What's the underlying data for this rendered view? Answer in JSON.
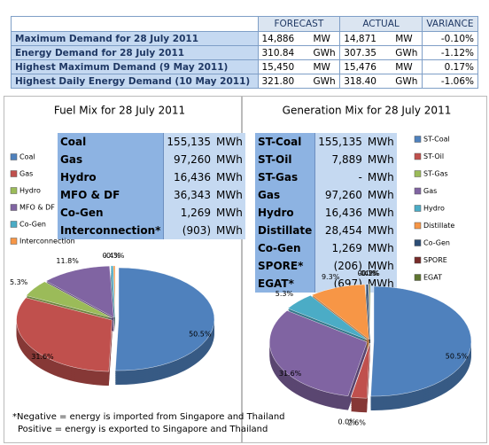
{
  "summary_table": {
    "headers": [
      "FORECAST",
      "ACTUAL",
      "VARIANCE"
    ],
    "rows": [
      [
        "Maximum Demand for 28 July 2011",
        "14,886",
        "MW",
        "14,871",
        "MW",
        "-0.10%"
      ],
      [
        "Energy Demand for 28 July 2011",
        "310.84",
        "GWh",
        "307.35",
        "GWh",
        "-1.12%"
      ],
      [
        "Highest Maximum Demand (9 May 2011)",
        "15,450",
        "MW",
        "15,476",
        "MW",
        "0.17%"
      ],
      [
        "Highest Daily Energy Demand (10 May 2011)",
        "321.80",
        "GWh",
        "318.40",
        "GWh",
        "-1.06%"
      ]
    ]
  },
  "fuel_table": {
    "rows": [
      [
        "Coal",
        "155,135",
        "MWh"
      ],
      [
        "Gas",
        "97,260",
        "MWh"
      ],
      [
        "Hydro",
        "16,436",
        "MWh"
      ],
      [
        "MFO & DF",
        "36,343",
        "MWh"
      ],
      [
        "Co-Gen",
        "1,269",
        "MWh"
      ],
      [
        "Interconnection*",
        "(903)",
        "MWh"
      ]
    ]
  },
  "generation_table": {
    "rows": [
      [
        "ST-Coal",
        "155,135",
        "MWh"
      ],
      [
        "ST-Oil",
        "7,889",
        "MWh"
      ],
      [
        "ST-Gas",
        "-",
        "MWh"
      ],
      [
        "Gas",
        "97,260",
        "MWh"
      ],
      [
        "Hydro",
        "16,436",
        "MWh"
      ],
      [
        "Distillate",
        "28,454",
        "MWh"
      ],
      [
        "Co-Gen",
        "1,269",
        "MWh"
      ],
      [
        "SPORE*",
        "(206)",
        "MWh"
      ],
      [
        "EGAT*",
        "(697)",
        "MWh"
      ]
    ]
  },
  "chart_data": [
    {
      "type": "pie",
      "title": "Fuel Mix for 28 July 2011",
      "categories": [
        "Coal",
        "Gas",
        "Hydro",
        "MFO & DF",
        "Co-Gen",
        "Interconnection"
      ],
      "values": [
        50.5,
        31.6,
        5.3,
        11.8,
        0.4,
        -0.3
      ],
      "value_labels": [
        "50.5%",
        "31.6%",
        "5.3%",
        "11.8%",
        "0.4%",
        "-0.3%"
      ],
      "colors": [
        "#4f81bd",
        "#c0504d",
        "#9bbb59",
        "#8064a2",
        "#4bacc6",
        "#f79646"
      ]
    },
    {
      "type": "pie",
      "title": "Generation Mix for 28 July 2011",
      "categories": [
        "ST-Coal",
        "ST-Oil",
        "ST-Gas",
        "Gas",
        "Hydro",
        "Distillate",
        "Co-Gen",
        "SPORE",
        "EGAT"
      ],
      "values": [
        50.5,
        2.6,
        0,
        31.6,
        5.3,
        9.3,
        0.4,
        -0.1,
        -0.2
      ],
      "value_labels": [
        "50.5%",
        "2.6%",
        "0.0%",
        "31.6%",
        "5.3%",
        "9.3%",
        "0.4%",
        "-0.1%",
        "-0.2%"
      ],
      "colors": [
        "#4f81bd",
        "#c0504d",
        "#9bbb59",
        "#8064a2",
        "#4bacc6",
        "#f79646",
        "#2c4d75",
        "#772c2a",
        "#5f7530"
      ]
    }
  ],
  "notes": [
    "*Negative = energy is imported from Singapore and Thailand",
    "Positive = energy is exported to Singapore and Thailand"
  ]
}
